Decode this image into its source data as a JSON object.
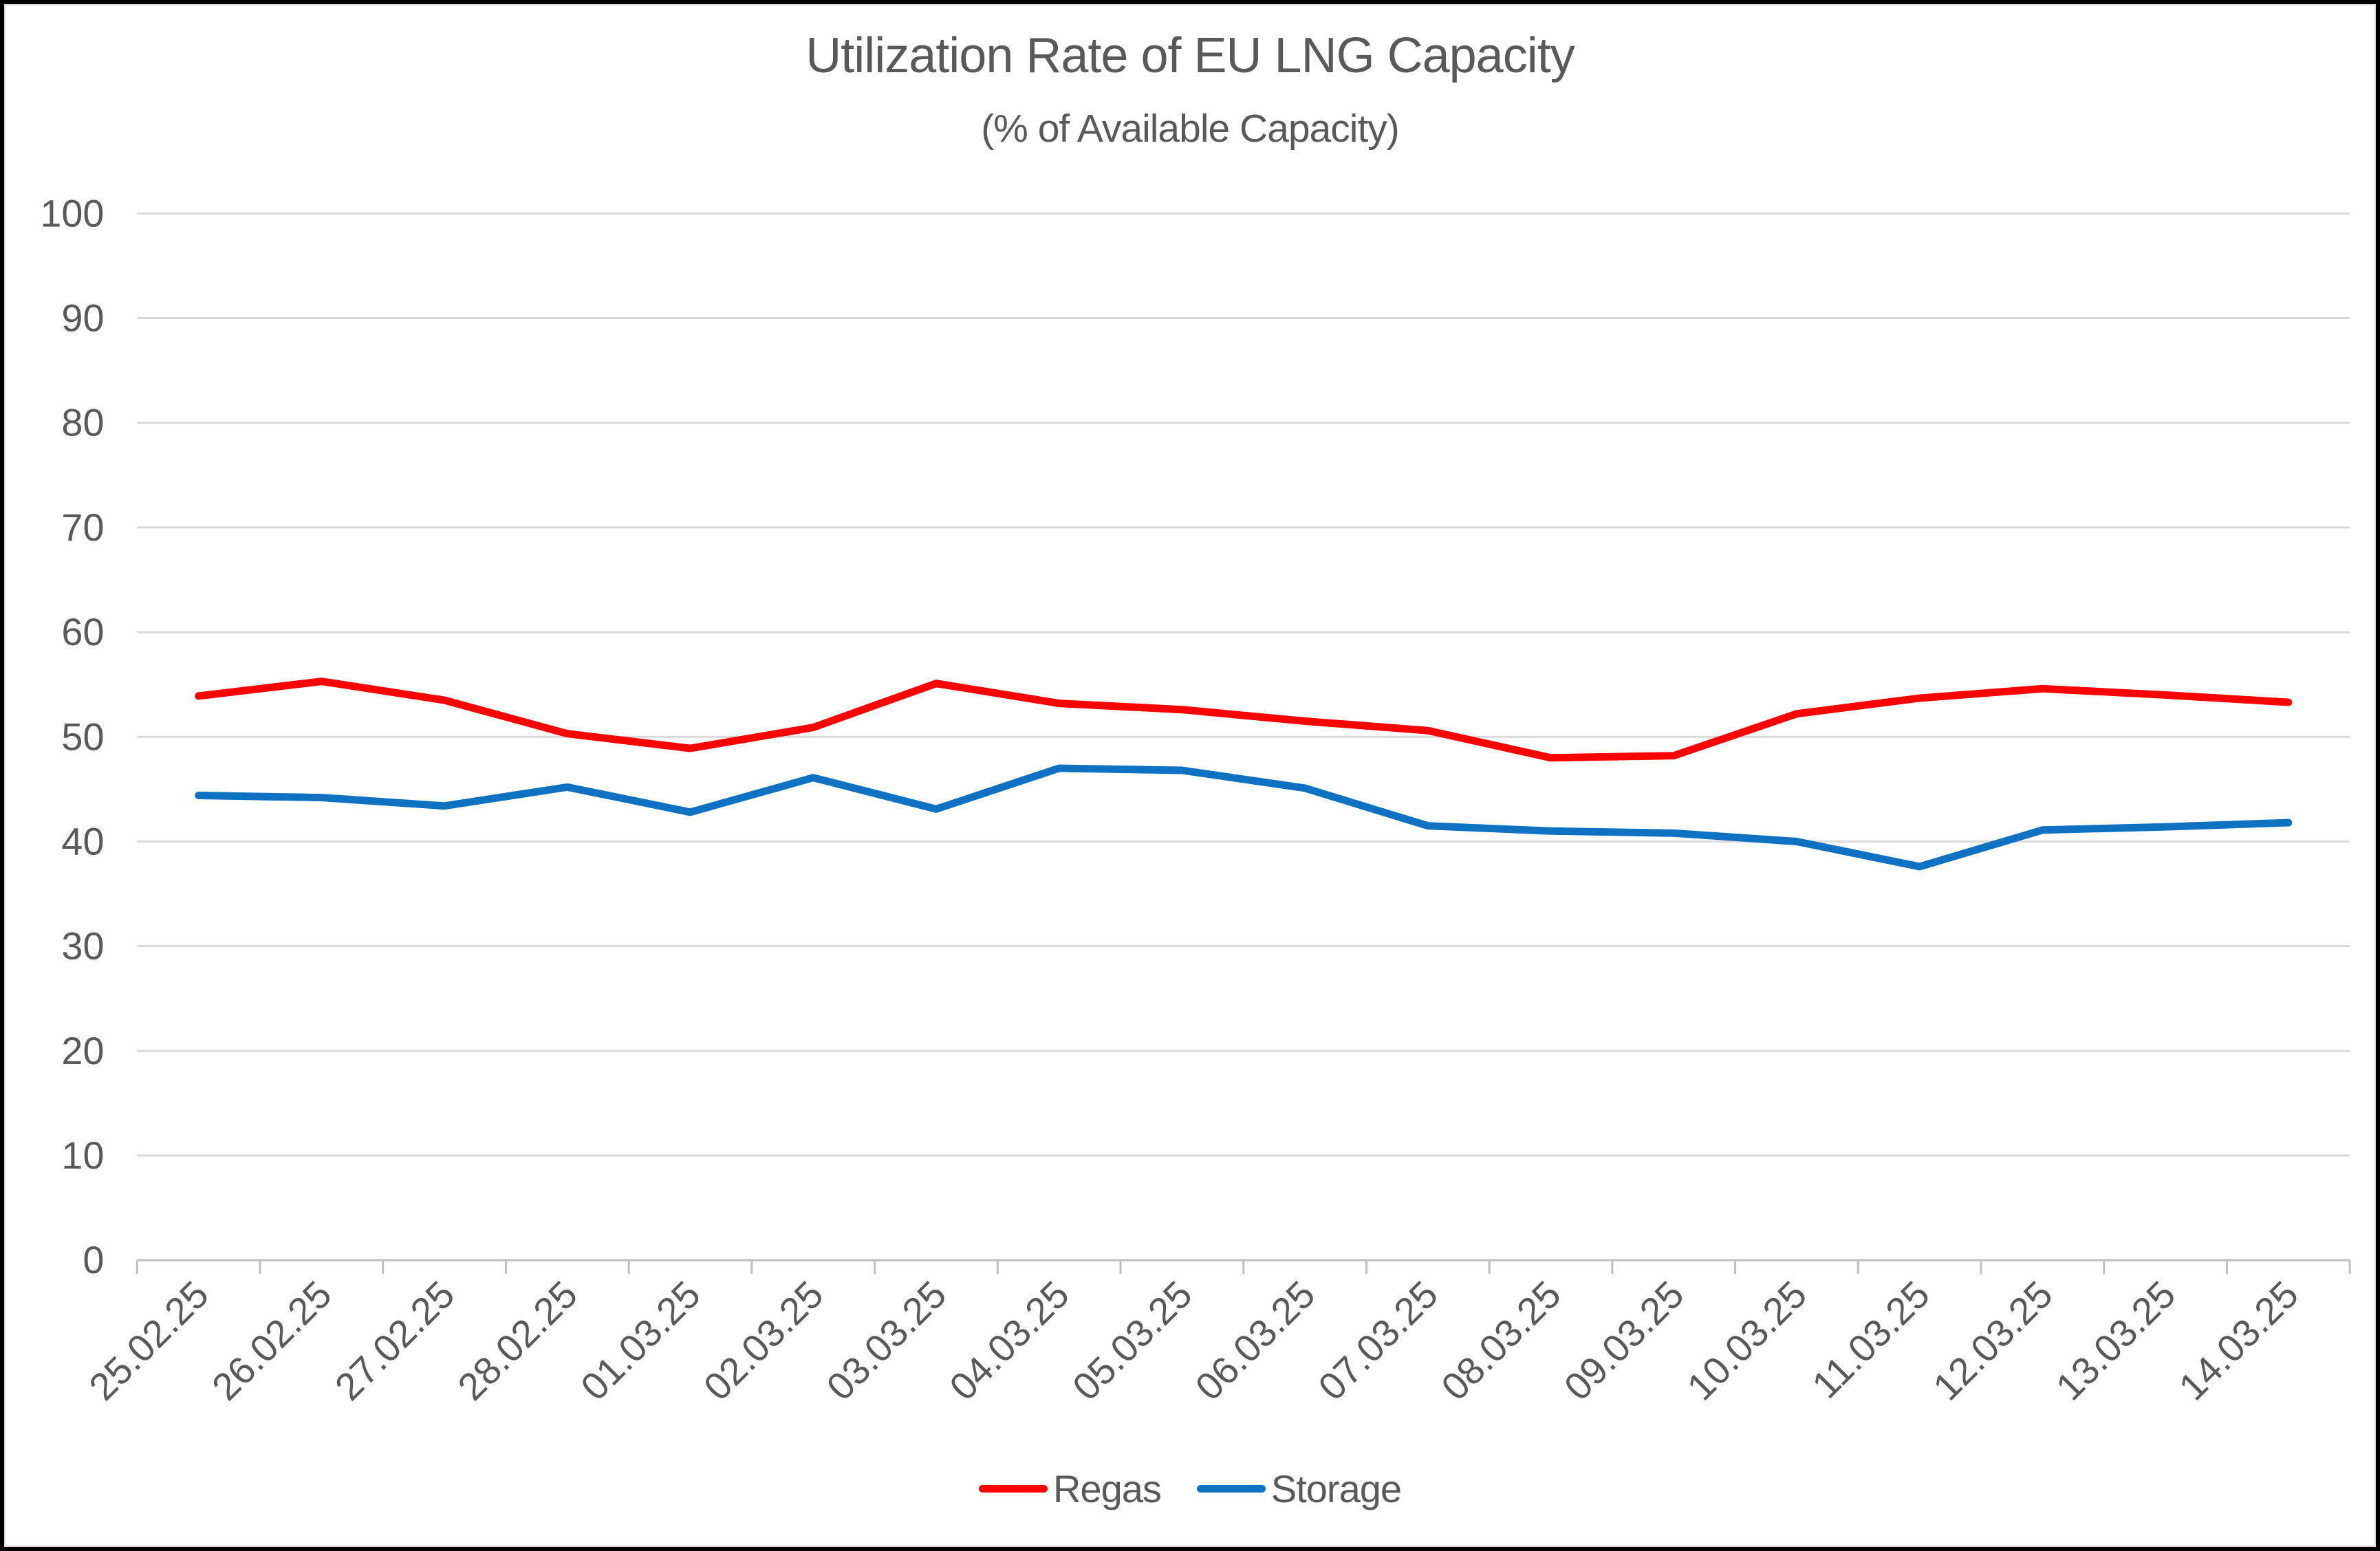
{
  "chart_data": {
    "type": "line",
    "title": "Utilization Rate of EU LNG Capacity",
    "subtitle": "(% of Available Capacity)",
    "xlabel": "",
    "ylabel": "",
    "ylim": [
      0,
      100
    ],
    "y_ticks": [
      0,
      10,
      20,
      30,
      40,
      50,
      60,
      70,
      80,
      90,
      100
    ],
    "grid": "horizontal",
    "legend_position": "bottom",
    "categories": [
      "25.02.25",
      "26.02.25",
      "27.02.25",
      "28.02.25",
      "01.03.25",
      "02.03.25",
      "03.03.25",
      "04.03.25",
      "05.03.25",
      "06.03.25",
      "07.03.25",
      "08.03.25",
      "09.03.25",
      "10.03.25",
      "11.03.25",
      "12.03.25",
      "13.03.25",
      "14.03.25"
    ],
    "series": [
      {
        "name": "Regas",
        "color": "#ff0000",
        "values": [
          53.9,
          55.3,
          53.5,
          50.3,
          48.9,
          50.9,
          55.1,
          53.2,
          52.6,
          51.5,
          50.6,
          48.0,
          48.2,
          52.2,
          53.7,
          54.6,
          54.0,
          53.3
        ]
      },
      {
        "name": "Storage",
        "color": "#0e71c1",
        "values": [
          44.4,
          44.2,
          43.4,
          45.2,
          42.8,
          46.1,
          43.1,
          47.0,
          46.8,
          45.1,
          41.5,
          41.0,
          40.8,
          40.0,
          37.6,
          41.1,
          41.4,
          41.8
        ]
      }
    ]
  }
}
